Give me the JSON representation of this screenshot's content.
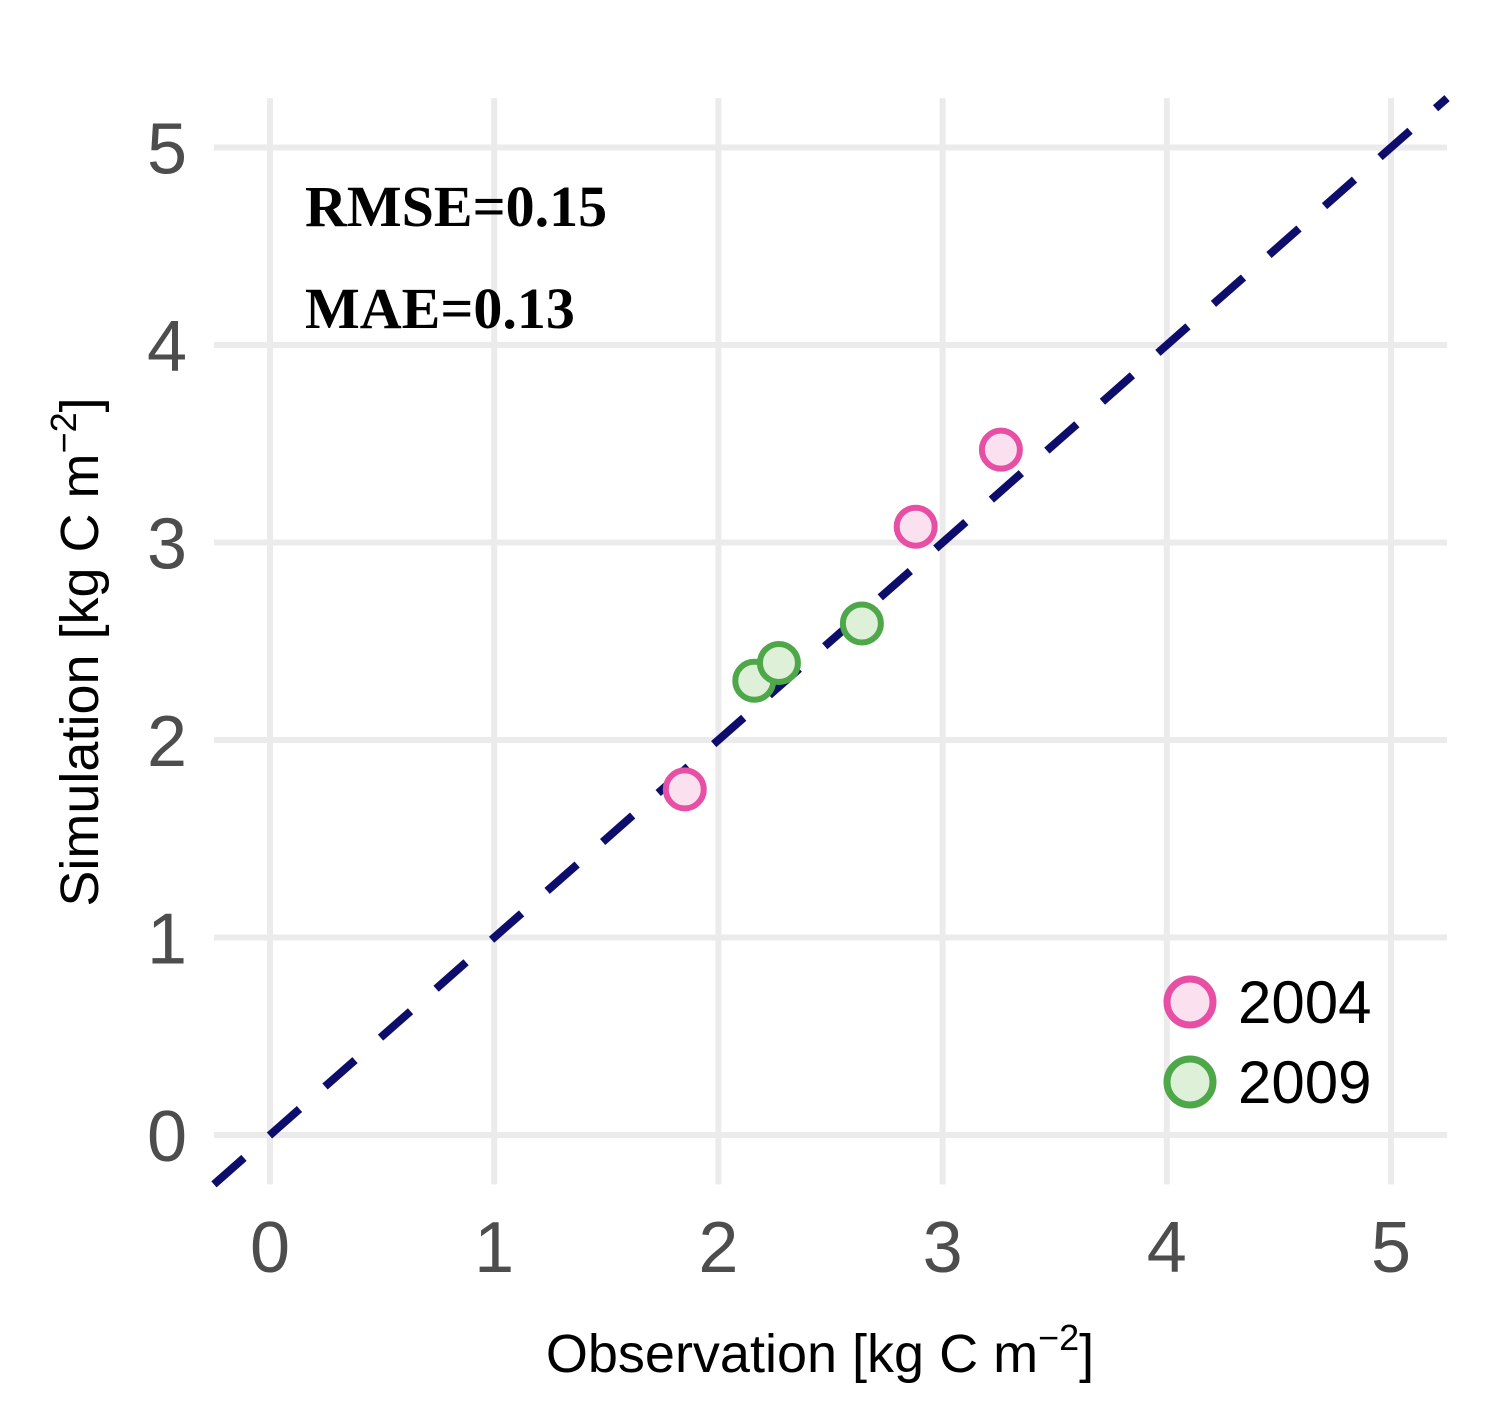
{
  "chart_data": {
    "type": "scatter",
    "title": "",
    "xlabel": "Observation [kg C m",
    "xlabel_sup": "−2",
    "xlabel_end": "]",
    "ylabel": "Simulation [kg C m",
    "ylabel_sup": "−2",
    "ylabel_end": "]",
    "xlim": [
      -0.25,
      5.25
    ],
    "ylim": [
      -0.25,
      5.25
    ],
    "x_ticks": [
      "0",
      "1",
      "2",
      "3",
      "4",
      "5"
    ],
    "y_ticks": [
      "0",
      "1",
      "2",
      "3",
      "4",
      "5"
    ],
    "grid": true,
    "legend_position": "bottom-right",
    "reference_line": {
      "type": "1:1",
      "style": "dashed",
      "color": "#0d0d6b"
    },
    "annotations": [
      "RMSE=0.15",
      "MAE=0.13"
    ],
    "series": [
      {
        "name": "2004",
        "stroke": "#e64fa3",
        "fill": "#fbe0ef",
        "points": [
          {
            "x": 1.85,
            "y": 1.75
          },
          {
            "x": 2.88,
            "y": 3.08
          },
          {
            "x": 3.26,
            "y": 3.47
          }
        ]
      },
      {
        "name": "2009",
        "stroke": "#4ea84a",
        "fill": "#def0d8",
        "points": [
          {
            "x": 2.16,
            "y": 2.3
          },
          {
            "x": 2.27,
            "y": 2.39
          },
          {
            "x": 2.64,
            "y": 2.59
          }
        ]
      }
    ]
  }
}
